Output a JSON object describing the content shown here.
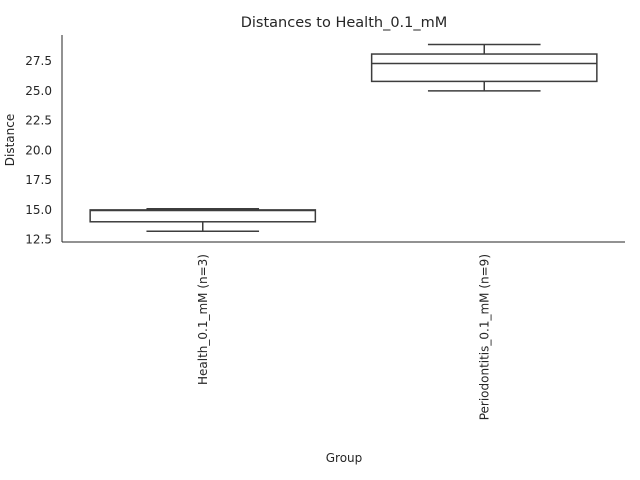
{
  "chart_data": {
    "type": "box",
    "title": "Distances to Health_0.1_mM",
    "xlabel": "Group",
    "ylabel": "Distance",
    "ylim": [
      12.3,
      29.7
    ],
    "yticks": [
      12.5,
      15.0,
      17.5,
      20.0,
      22.5,
      25.0,
      27.5
    ],
    "ytick_labels": [
      "12.5",
      "15.0",
      "17.5",
      "20.0",
      "22.5",
      "25.0",
      "27.5"
    ],
    "grid": false,
    "categories": [
      "Health_0.1_mM (n=3)",
      "Periodontitis_0.1_mM (n=9)"
    ],
    "boxes": [
      {
        "whisker_low": 13.2,
        "q1": 14.0,
        "median": 14.95,
        "q3": 15.0,
        "whisker_high": 15.1
      },
      {
        "whisker_low": 25.0,
        "q1": 25.8,
        "median": 27.3,
        "q3": 28.1,
        "whisker_high": 28.9
      }
    ],
    "colors": {
      "box_edge": "#3d3d3d",
      "box_fill": "#ffffff",
      "axis": "#262626",
      "text": "#262626"
    }
  }
}
